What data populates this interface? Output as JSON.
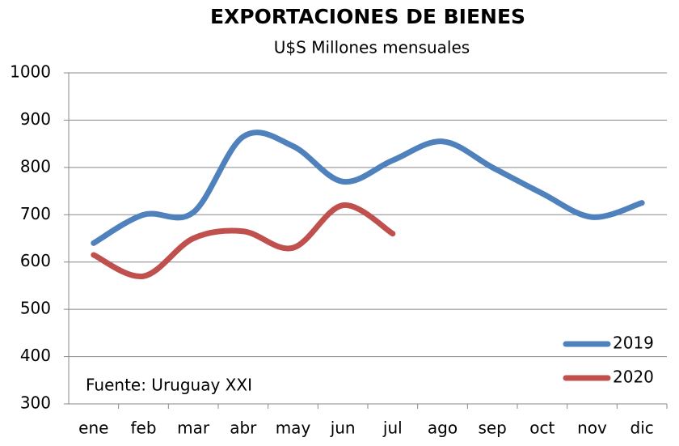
{
  "chart_data": {
    "type": "line",
    "title": "EXPORTACIONES DE BIENES",
    "subtitle": "U$S Millones  mensuales",
    "annotation": "Fuente: Uruguay XXI",
    "categories": [
      "ene",
      "feb",
      "mar",
      "abr",
      "may",
      "jun",
      "jul",
      "ago",
      "sep",
      "oct",
      "nov",
      "dic"
    ],
    "series": [
      {
        "name": "2019",
        "color": "#4f81bd",
        "values": [
          640,
          700,
          705,
          865,
          845,
          770,
          815,
          855,
          800,
          745,
          695,
          725
        ]
      },
      {
        "name": "2020",
        "color": "#c0504d",
        "values": [
          615,
          570,
          650,
          665,
          630,
          720,
          660,
          null,
          null,
          null,
          null,
          null
        ]
      }
    ],
    "ylim": [
      300,
      1000
    ],
    "yticks": [
      300,
      400,
      500,
      600,
      700,
      800,
      900,
      1000
    ],
    "grid": true,
    "legend": "bottom-right"
  }
}
